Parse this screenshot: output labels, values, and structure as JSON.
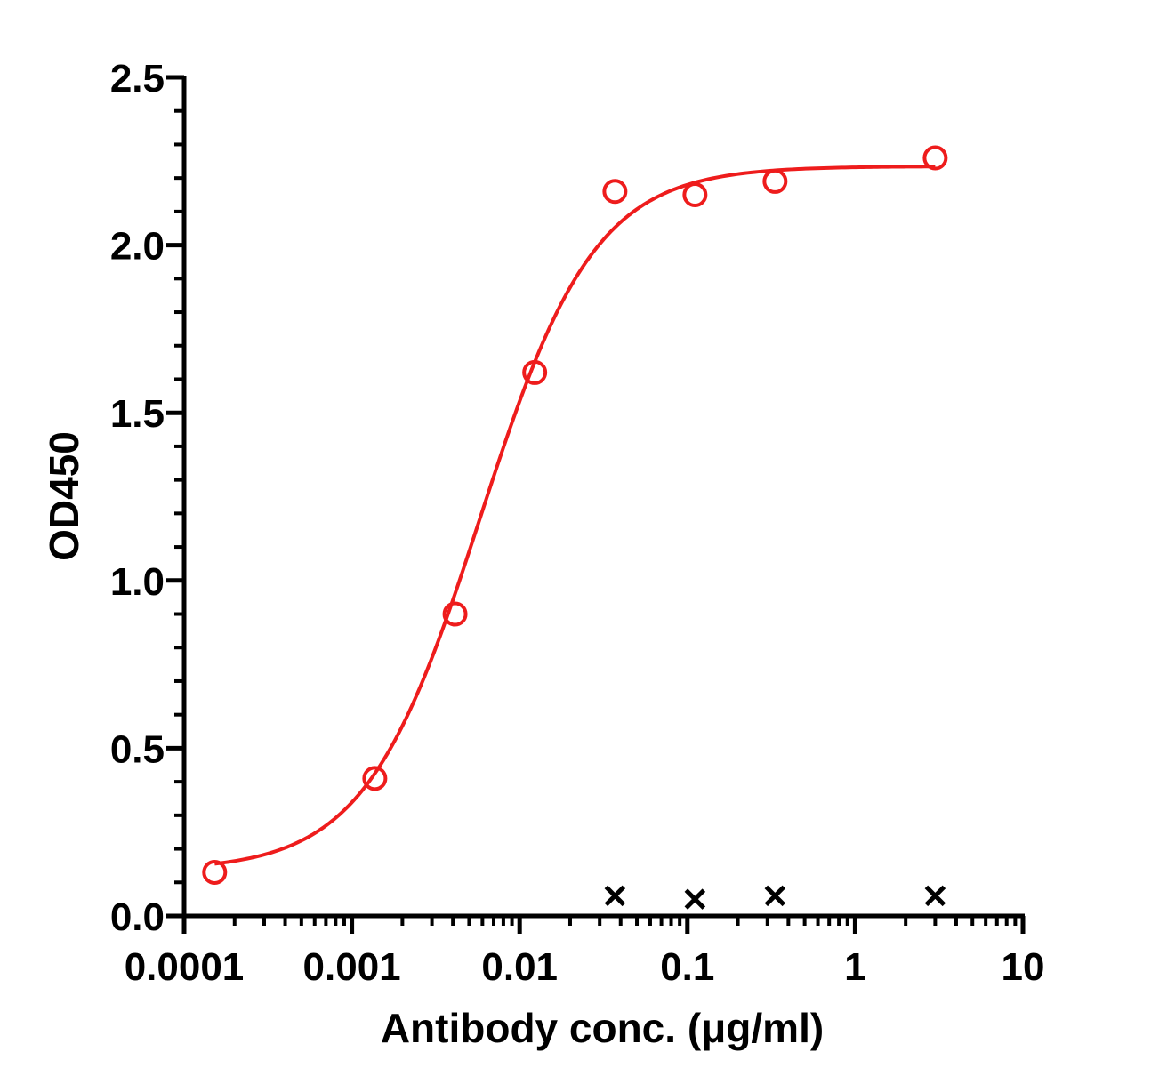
{
  "chart_data": {
    "type": "scatter",
    "xlabel": "Antibody conc. (μg/ml)",
    "ylabel": "OD450",
    "xscale": "log",
    "xlim": [
      0.0001,
      10
    ],
    "ylim": [
      0,
      2.5
    ],
    "x_ticks": [
      {
        "value": 0.0001,
        "label": "0.0001"
      },
      {
        "value": 0.001,
        "label": "0.001"
      },
      {
        "value": 0.01,
        "label": "0.01"
      },
      {
        "value": 0.1,
        "label": "0.1"
      },
      {
        "value": 1,
        "label": "1"
      },
      {
        "value": 10,
        "label": "10"
      }
    ],
    "y_ticks": [
      {
        "value": 0,
        "label": "0.0"
      },
      {
        "value": 0.5,
        "label": "0.5"
      },
      {
        "value": 1.0,
        "label": "1.0"
      },
      {
        "value": 1.5,
        "label": "1.5"
      },
      {
        "value": 2.0,
        "label": "2.0"
      },
      {
        "value": 2.5,
        "label": "2.5"
      }
    ],
    "grid": false,
    "legend": "none",
    "series": [
      {
        "marker": "open-circle",
        "color": "#ee1c1c",
        "fit": "sigmoidal",
        "x": [
          0.000152,
          0.00137,
          0.00412,
          0.0123,
          0.037,
          0.111,
          0.333,
          3.0
        ],
        "y": [
          0.13,
          0.41,
          0.9,
          1.62,
          2.16,
          2.15,
          2.19,
          2.26
        ]
      },
      {
        "marker": "x",
        "color": "#000000",
        "x": [
          0.037,
          0.111,
          0.333,
          3.0
        ],
        "y": [
          0.06,
          0.05,
          0.06,
          0.06
        ]
      }
    ]
  }
}
